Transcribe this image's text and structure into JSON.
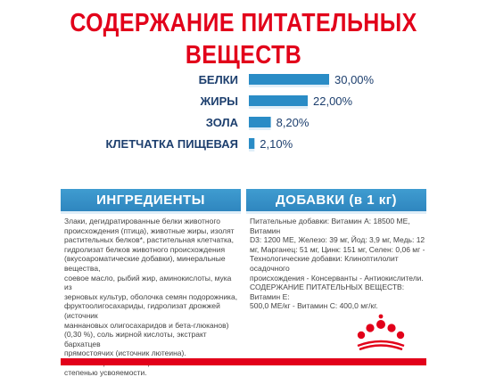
{
  "title": {
    "line1": "СОДЕРЖАНИЕ ПИТАТЕЛЬНЫХ",
    "line2": "ВЕЩЕСТВ"
  },
  "chart_data": {
    "type": "bar",
    "orientation": "horizontal",
    "categories": [
      "БЕЛКИ",
      "ЖИРЫ",
      "ЗОЛА",
      "КЛЕТЧАТКА ПИЩЕВАЯ"
    ],
    "values": [
      30.0,
      22.0,
      8.2,
      2.1
    ],
    "value_labels": [
      "30,00%",
      "22,00%",
      "8,20%",
      "2,10%"
    ],
    "unit": "%",
    "xlim": [
      0,
      30
    ],
    "grid": false,
    "bar_color": "#2a8cc6",
    "bar_shadow_color": "#dfeef8"
  },
  "sections": {
    "ingredients": {
      "header": "ИНГРЕДИЕНТЫ",
      "text": "Злаки, дегидратированные белки животного\nпроисхождения (птица), животные жиры, изолят\nрастительных белков*, растительная клетчатка,\nгидролизат белков животного происхождения\n(вкусоароматические добавки), минеральные вещества,\nсоевое масло, рыбий жир, аминокислоты, мука из\nзерновых культур, оболочка семян подорожника,\nфруктоолигосахариды, гидролизат дрожжей (источник\nманнановых олигосахаридов и бета-глюканов)\n(0,30 %), соль жирной кислоты, экстракт бархатцев\nпрямостоячих (источник лютеина).\n*L.I.P.: специально отобранные белки с высокой\nстепенью усвояемости."
    },
    "additives": {
      "header": "ДОБАВКИ (в 1 кг)",
      "text": "Питательные добавки: Витамин А: 18500 МЕ, Витамин\nD3: 1200 МЕ, Железо: 39 мг, Йод: 3,9 мг, Медь: 12\nмг, Марганец: 51 мг, Цинк: 151 мг, Селен: 0,06 мг -\nТехнологические добавки: Клиноптилолит осадочного\nпроисхождения - Консерванты - Антиокислители.\nСОДЕРЖАНИЕ ПИТАТЕЛЬНЫХ ВЕЩЕСТВ: Витамин Е:\n500,0 МЕ/кг - Витамин С: 400,0 мг/кг."
    }
  },
  "colors": {
    "title": "#e2001a",
    "header_bg": "#2f86bf",
    "logo": "#e2001a"
  },
  "logo": {
    "icon": "royal-canin-crown-icon"
  }
}
